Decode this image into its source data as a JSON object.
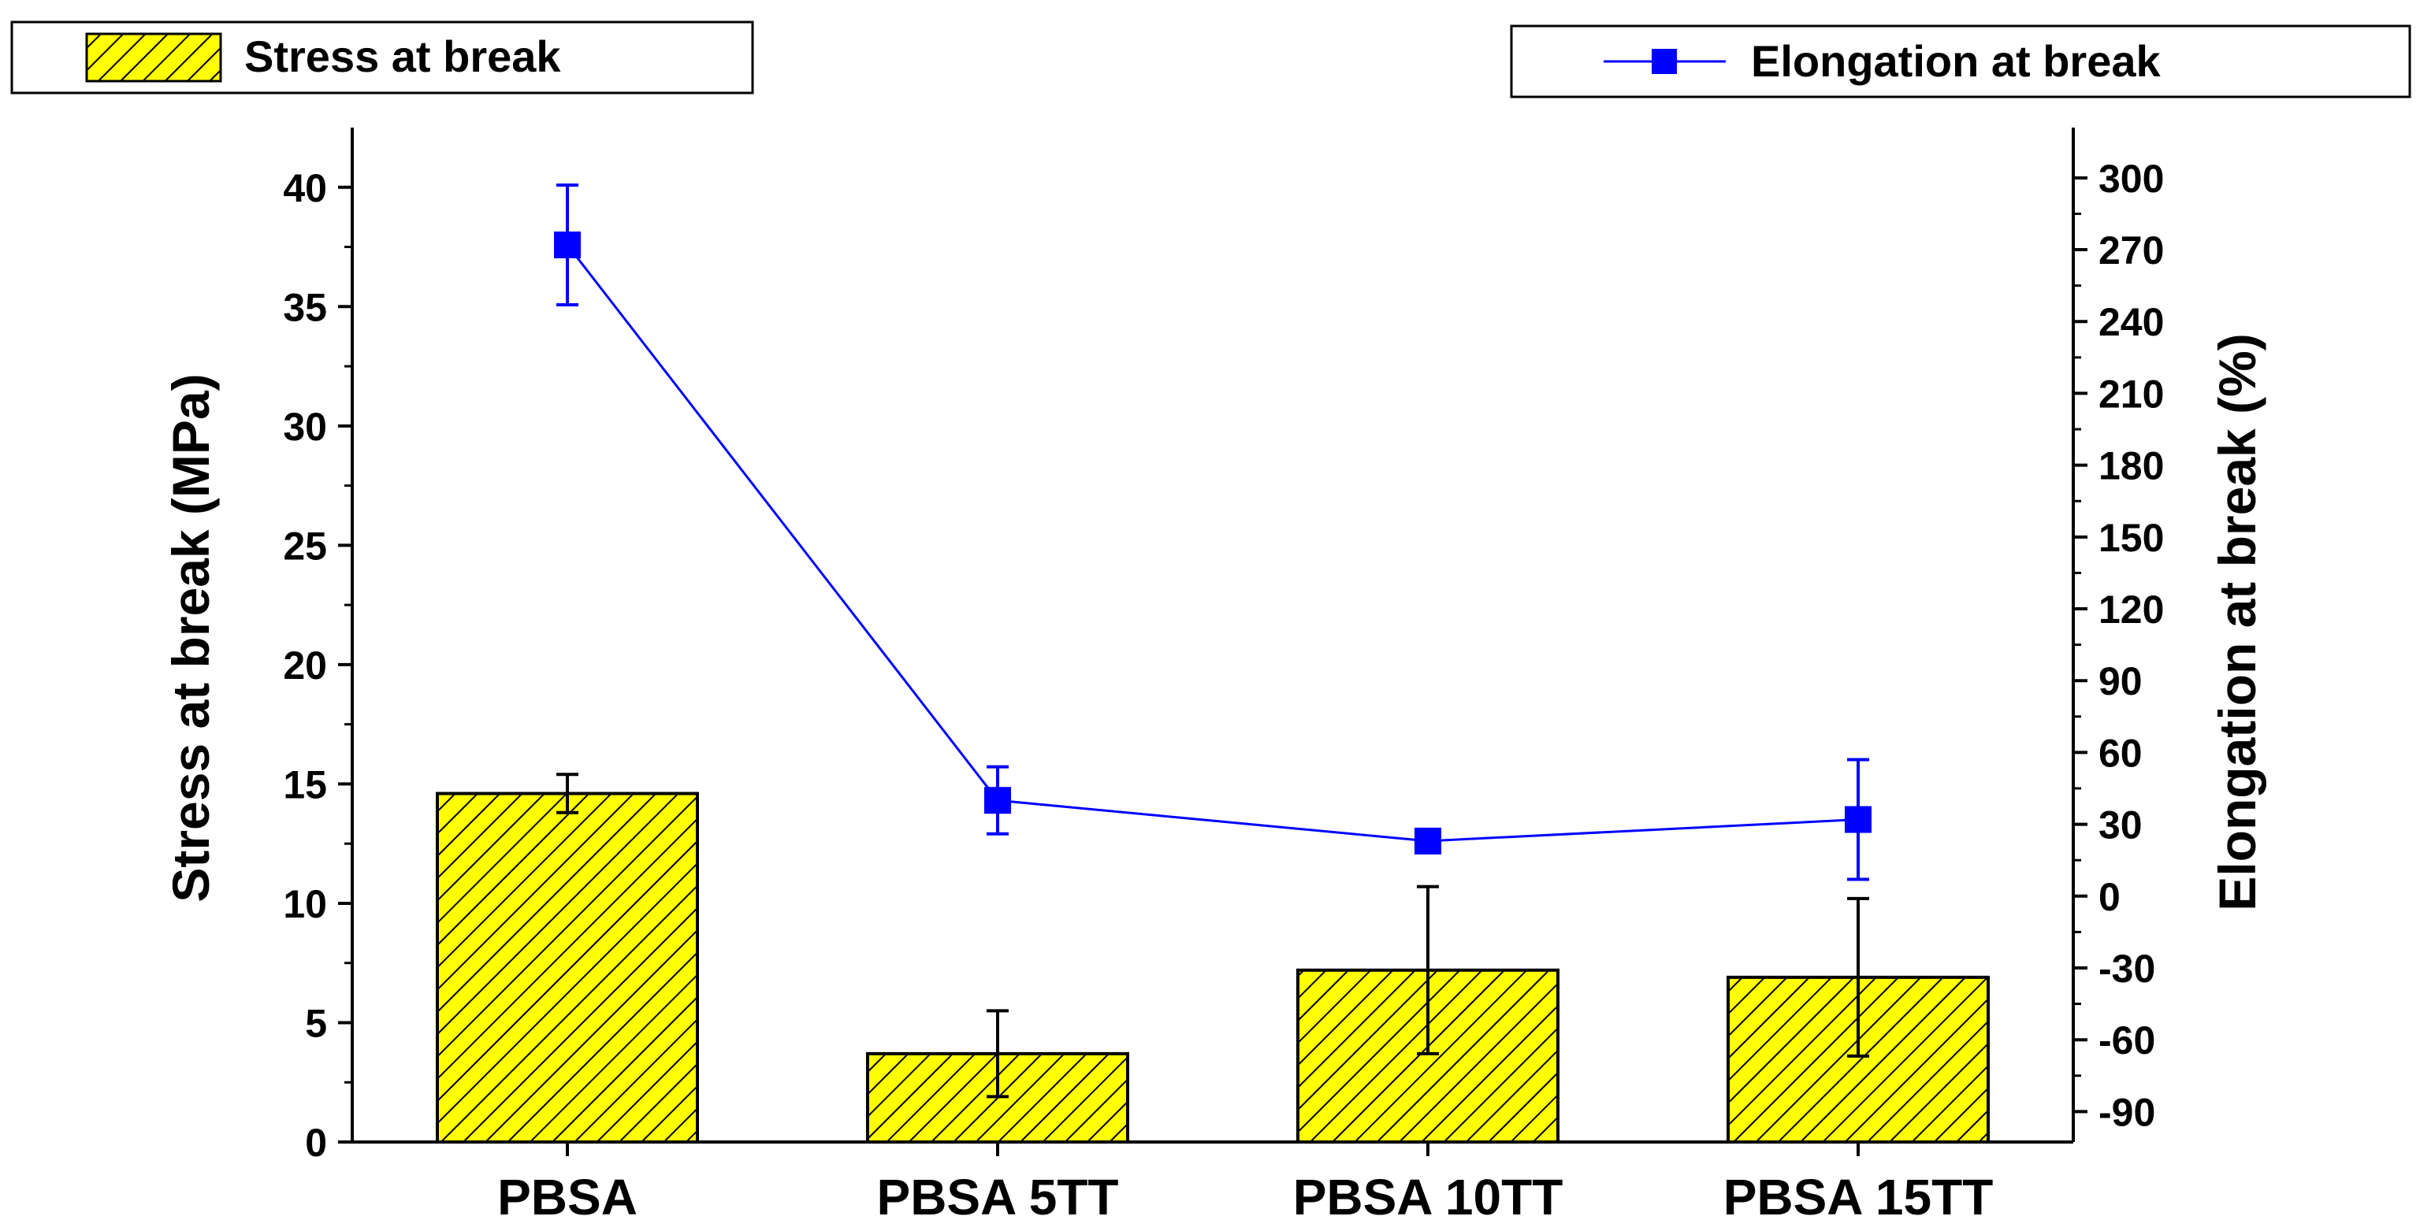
{
  "chart_data": {
    "type": "bar",
    "categories": [
      "PBSA",
      "PBSA 5TT",
      "PBSA 10TT",
      "PBSA 15TT"
    ],
    "series": [
      {
        "name": "Stress at break",
        "type": "bar",
        "axis": "left",
        "values": [
          14.6,
          3.7,
          7.2,
          6.9
        ],
        "error": [
          0.8,
          1.8,
          3.5,
          3.3
        ],
        "color": "#ffff00"
      },
      {
        "name": "Elongation at break",
        "type": "line",
        "axis": "right",
        "values": [
          272,
          40,
          23,
          32
        ],
        "error": [
          25,
          14,
          4,
          25
        ],
        "color": "#0000ff"
      }
    ],
    "ylabel_left": "Stress at break (MPa)",
    "ylabel_right": "Elongation at break (%)",
    "xlabel": "",
    "ylim_left": [
      0,
      42.5
    ],
    "ylim_right": [
      -102.7,
      321
    ],
    "yticks_left": [
      0,
      5,
      10,
      15,
      20,
      25,
      30,
      35,
      40
    ],
    "yticks_right": [
      -90,
      -60,
      -30,
      0,
      30,
      60,
      90,
      120,
      150,
      180,
      210,
      240,
      270,
      300
    ],
    "grid": false,
    "legend_placement": "top-left (bars), top-right (line)"
  }
}
